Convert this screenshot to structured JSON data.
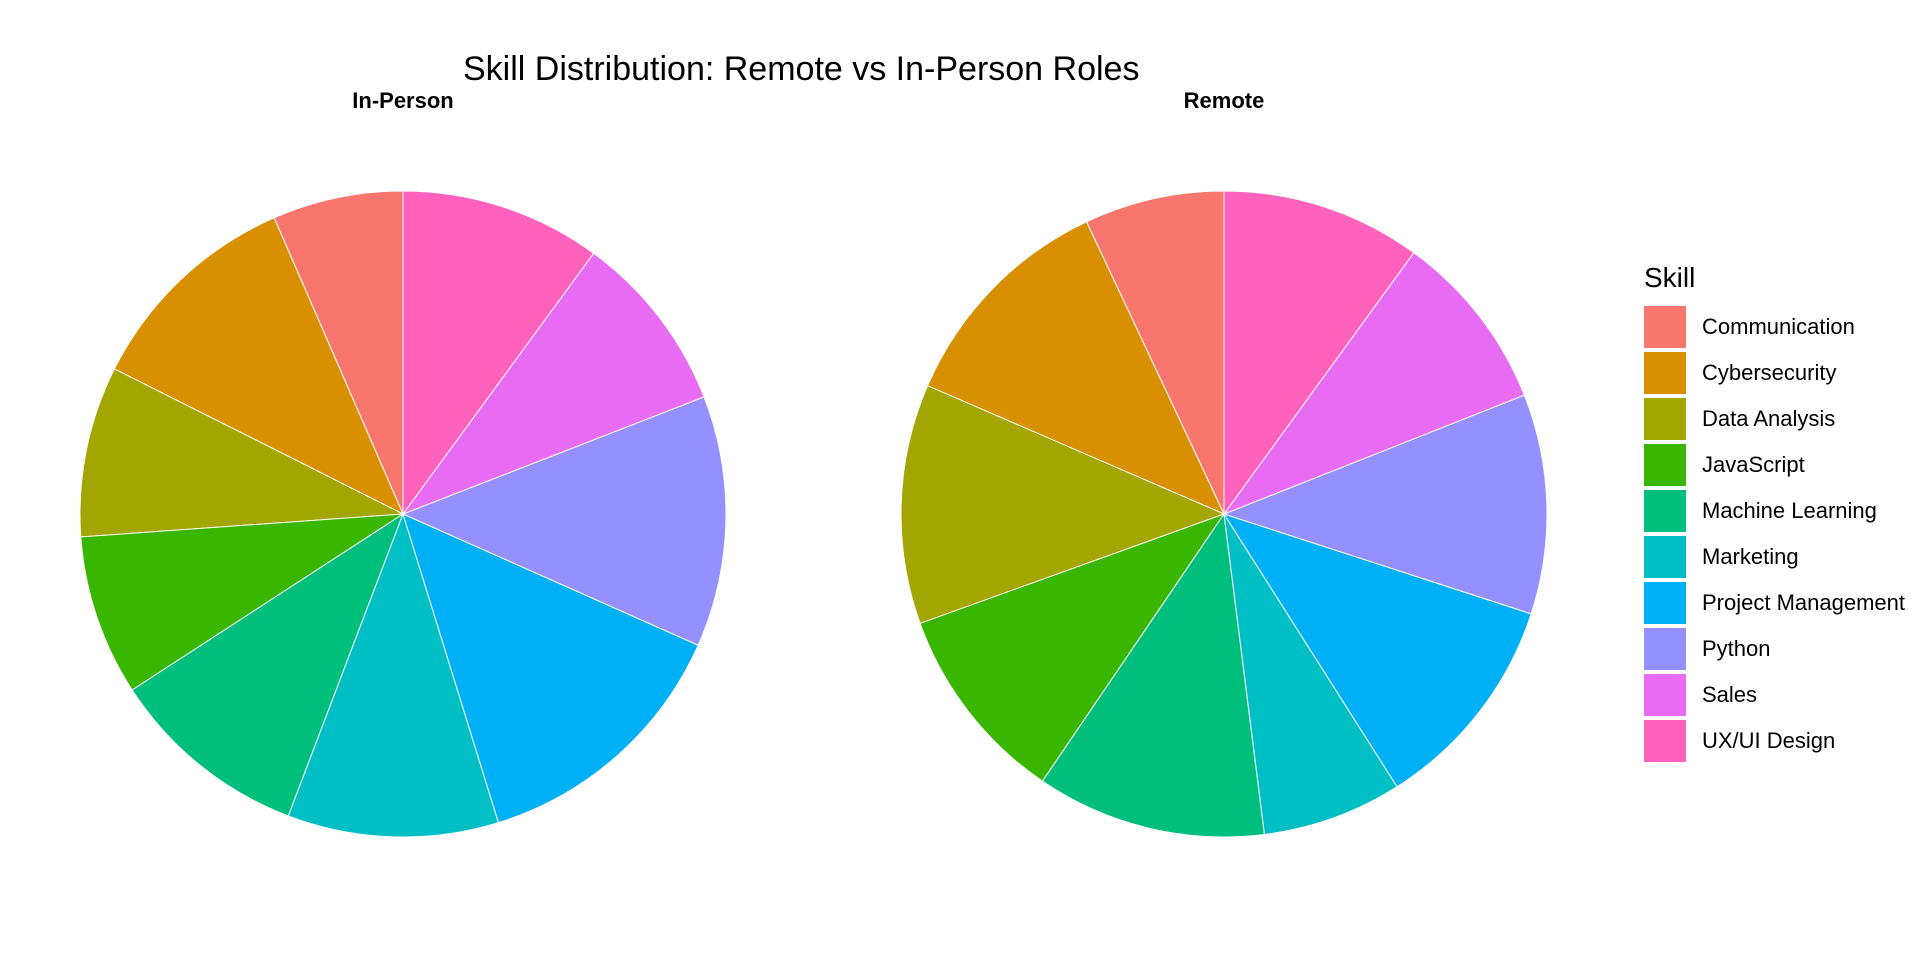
{
  "chart_data": {
    "type": "pie",
    "title": "Skill Distribution: Remote vs In-Person Roles",
    "legend": {
      "title": "Skill",
      "position": "right"
    },
    "categories": [
      "Communication",
      "Cybersecurity",
      "Data Analysis",
      "JavaScript",
      "Machine Learning",
      "Marketing",
      "Project Management",
      "Python",
      "Sales",
      "UX/UI Design"
    ],
    "colors": [
      "#F8766D",
      "#D89000",
      "#A3A500",
      "#39B600",
      "#00BF7D",
      "#00BFC4",
      "#00B0F6",
      "#9590FF",
      "#E76BF3",
      "#FF62BC"
    ],
    "series": [
      {
        "name": "In-Person",
        "values": [
          6.5,
          11.0,
          8.5,
          8.0,
          10.0,
          10.5,
          13.5,
          12.5,
          9.0,
          10.0
        ]
      },
      {
        "name": "Remote",
        "values": [
          7.0,
          11.5,
          12.0,
          10.0,
          11.5,
          7.0,
          11.0,
          11.0,
          9.0,
          10.0
        ]
      }
    ]
  }
}
